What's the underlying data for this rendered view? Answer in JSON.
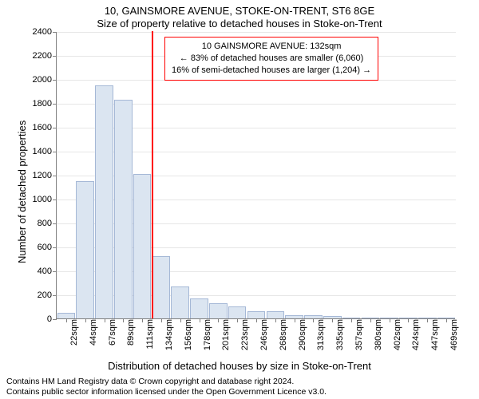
{
  "titles": {
    "line1": "10, GAINSMORE AVENUE, STOKE-ON-TRENT, ST6 8GE",
    "line2": "Size of property relative to detached houses in Stoke-on-Trent"
  },
  "axes": {
    "ylabel": "Number of detached properties",
    "xlabel": "Distribution of detached houses by size in Stoke-on-Trent",
    "ylim": [
      0,
      2400
    ],
    "ytick_step": 200,
    "label_fontsize": 13,
    "tick_fontsize": 11,
    "grid_color": "#e6e6e6",
    "axis_color": "#808080"
  },
  "chart": {
    "type": "histogram",
    "bar_fill": "#dbe5f1",
    "bar_stroke": "#a5b8d6",
    "bar_width": 0.95,
    "background": "#ffffff",
    "categories": [
      "22sqm",
      "44sqm",
      "67sqm",
      "89sqm",
      "111sqm",
      "134sqm",
      "156sqm",
      "178sqm",
      "201sqm",
      "223sqm",
      "246sqm",
      "268sqm",
      "290sqm",
      "313sqm",
      "335sqm",
      "357sqm",
      "380sqm",
      "402sqm",
      "424sqm",
      "447sqm",
      "469sqm"
    ],
    "values": [
      50,
      1150,
      1950,
      1830,
      1210,
      520,
      270,
      170,
      130,
      100,
      60,
      60,
      30,
      30,
      20,
      10,
      10,
      10,
      0,
      10,
      0
    ]
  },
  "reference_line": {
    "between_index": 4,
    "color": "#ff0000",
    "width": 2
  },
  "annotation": {
    "border_color": "#ff0000",
    "line1": "10 GAINSMORE AVENUE: 132sqm",
    "line2": "← 83% of detached houses are smaller (6,060)",
    "line3": "16% of semi-detached houses are larger (1,204) →"
  },
  "footer": {
    "line1": "Contains HM Land Registry data © Crown copyright and database right 2024.",
    "line2": "Contains public sector information licensed under the Open Government Licence v3.0."
  }
}
